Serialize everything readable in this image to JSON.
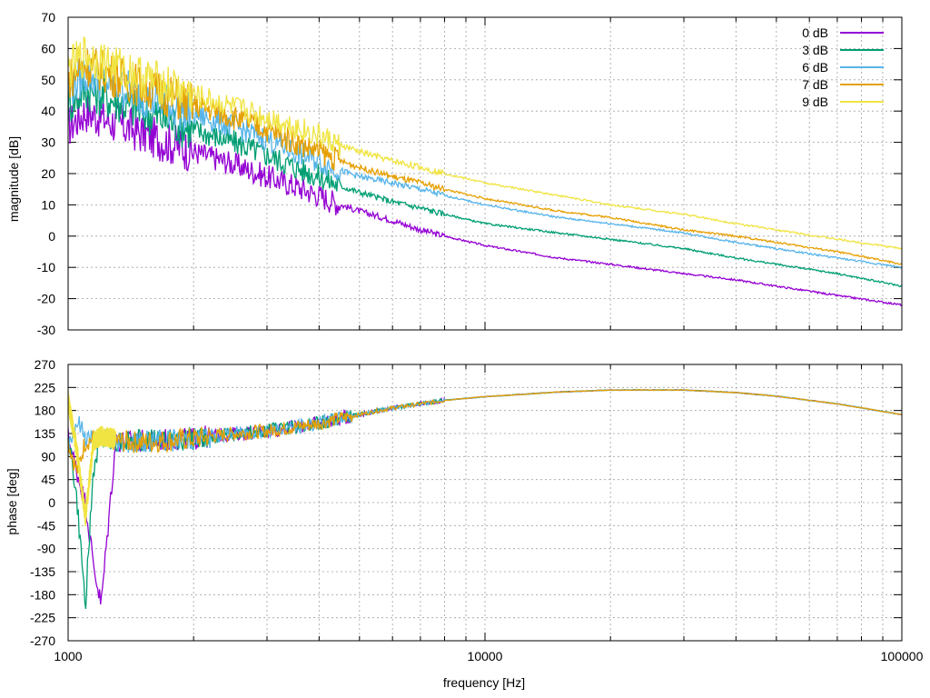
{
  "chart_data": [
    {
      "type": "line",
      "title": "",
      "xlabel": "",
      "ylabel": "magnitude [dB]",
      "xscale": "log",
      "xlim": [
        1000,
        100000
      ],
      "ylim": [
        -30,
        70
      ],
      "yticks": [
        -30,
        -20,
        -10,
        0,
        10,
        20,
        30,
        40,
        50,
        60,
        70
      ],
      "grid": true,
      "legend_position": "top-right",
      "series": [
        {
          "name": "0 dB",
          "color": "#9400d3",
          "x": [
            1000,
            1100,
            1200,
            1500,
            2000,
            2500,
            3000,
            3500,
            4000,
            4500,
            5000,
            6000,
            7000,
            8000,
            10000,
            15000,
            20000,
            30000,
            40000,
            50000,
            70000,
            100000
          ],
          "y": [
            35,
            40,
            38,
            33,
            27,
            23,
            19,
            16,
            13,
            10,
            8,
            5,
            2,
            0,
            -3,
            -7,
            -9,
            -12,
            -14,
            -16,
            -19,
            -22
          ]
        },
        {
          "name": "3 dB",
          "color": "#009e73",
          "x": [
            1000,
            1100,
            1200,
            1500,
            2000,
            2500,
            3000,
            3500,
            4000,
            4500,
            5000,
            6000,
            7000,
            8000,
            10000,
            15000,
            20000,
            30000,
            40000,
            50000,
            70000,
            100000
          ],
          "y": [
            42,
            47,
            45,
            40,
            34,
            30,
            26,
            22,
            19,
            16,
            14,
            11,
            9,
            7,
            4,
            1,
            -1,
            -4,
            -7,
            -9,
            -12,
            -16
          ]
        },
        {
          "name": "6 dB",
          "color": "#56b4e9",
          "x": [
            1000,
            1100,
            1200,
            1500,
            2000,
            2500,
            3000,
            3500,
            4000,
            4500,
            5000,
            6000,
            7000,
            8000,
            10000,
            15000,
            20000,
            30000,
            40000,
            50000,
            70000,
            100000
          ],
          "y": [
            47,
            52,
            50,
            45,
            39,
            35,
            31,
            27,
            24,
            21,
            19,
            17,
            15,
            13,
            10,
            6,
            4,
            1,
            -2,
            -4,
            -7,
            -10
          ]
        },
        {
          "name": "7 dB",
          "color": "#e69f00",
          "x": [
            1000,
            1100,
            1200,
            1500,
            2000,
            2500,
            3000,
            3500,
            4000,
            4500,
            5000,
            6000,
            7000,
            8000,
            10000,
            15000,
            20000,
            30000,
            40000,
            50000,
            70000,
            100000
          ],
          "y": [
            50,
            55,
            53,
            48,
            42,
            38,
            34,
            30,
            27,
            24,
            22,
            19,
            17,
            15,
            12,
            8,
            6,
            2,
            0,
            -2,
            -5,
            -9
          ]
        },
        {
          "name": "9 dB",
          "color": "#f0e442",
          "x": [
            1000,
            1100,
            1200,
            1500,
            2000,
            2500,
            3000,
            3500,
            4000,
            4500,
            5000,
            6000,
            7000,
            8000,
            10000,
            15000,
            20000,
            30000,
            40000,
            50000,
            70000,
            100000
          ],
          "y": [
            53,
            58,
            56,
            51,
            45,
            41,
            38,
            35,
            32,
            29,
            27,
            24,
            22,
            20,
            17,
            13,
            10,
            7,
            4,
            2,
            -1,
            -4
          ]
        }
      ]
    },
    {
      "type": "line",
      "title": "",
      "xlabel": "frequency [Hz]",
      "ylabel": "phase [deg]",
      "xscale": "log",
      "xlim": [
        1000,
        100000
      ],
      "ylim": [
        -270,
        270
      ],
      "xticks": [
        1000,
        10000,
        100000
      ],
      "yticks": [
        -270,
        -225,
        -180,
        -135,
        -90,
        -45,
        0,
        45,
        90,
        135,
        180,
        225,
        270
      ],
      "grid": true,
      "series": [
        {
          "name": "0 dB",
          "color": "#9400d3",
          "x": [
            1000,
            1050,
            1100,
            1150,
            1200,
            1300,
            1500,
            2000,
            2500,
            3000,
            3500,
            4000,
            4500,
            5000,
            6000,
            7000,
            8000,
            10000,
            15000,
            20000,
            30000,
            40000,
            50000,
            70000,
            100000
          ],
          "y": [
            130,
            60,
            0,
            -120,
            -200,
            120,
            120,
            125,
            135,
            140,
            148,
            155,
            165,
            172,
            185,
            193,
            200,
            207,
            216,
            220,
            220,
            215,
            208,
            193,
            172
          ]
        },
        {
          "name": "3 dB",
          "color": "#009e73",
          "x": [
            1000,
            1050,
            1100,
            1150,
            1200,
            1300,
            1500,
            2000,
            2500,
            3000,
            3500,
            4000,
            4500,
            5000,
            6000,
            7000,
            8000,
            10000,
            15000,
            20000,
            30000,
            40000,
            50000,
            70000,
            100000
          ],
          "y": [
            140,
            0,
            -200,
            60,
            130,
            120,
            120,
            125,
            135,
            140,
            148,
            155,
            165,
            172,
            185,
            193,
            200,
            207,
            216,
            220,
            220,
            215,
            208,
            193,
            172
          ]
        },
        {
          "name": "6 dB",
          "color": "#56b4e9",
          "x": [
            1000,
            1050,
            1100,
            1150,
            1200,
            1300,
            1500,
            2000,
            2500,
            3000,
            3500,
            4000,
            4500,
            5000,
            6000,
            7000,
            8000,
            10000,
            15000,
            20000,
            30000,
            40000,
            50000,
            70000,
            100000
          ],
          "y": [
            110,
            160,
            130,
            125,
            120,
            120,
            118,
            125,
            135,
            140,
            148,
            155,
            165,
            172,
            185,
            193,
            200,
            207,
            216,
            220,
            220,
            215,
            208,
            193,
            172
          ]
        },
        {
          "name": "7 dB",
          "color": "#e69f00",
          "x": [
            1000,
            1050,
            1100,
            1150,
            1200,
            1300,
            1500,
            2000,
            2500,
            3000,
            3500,
            4000,
            4500,
            5000,
            6000,
            7000,
            8000,
            10000,
            15000,
            20000,
            30000,
            40000,
            50000,
            70000,
            100000
          ],
          "y": [
            120,
            60,
            120,
            125,
            120,
            120,
            118,
            125,
            135,
            140,
            148,
            155,
            165,
            172,
            185,
            193,
            200,
            207,
            216,
            220,
            220,
            215,
            208,
            193,
            172
          ]
        },
        {
          "name": "9 dB",
          "color": "#f0e442",
          "x": [
            1000,
            1050,
            1100,
            1150,
            1200,
            1300
          ],
          "y": [
            200,
            100,
            -30,
            120,
            130,
            125
          ]
        }
      ]
    }
  ]
}
